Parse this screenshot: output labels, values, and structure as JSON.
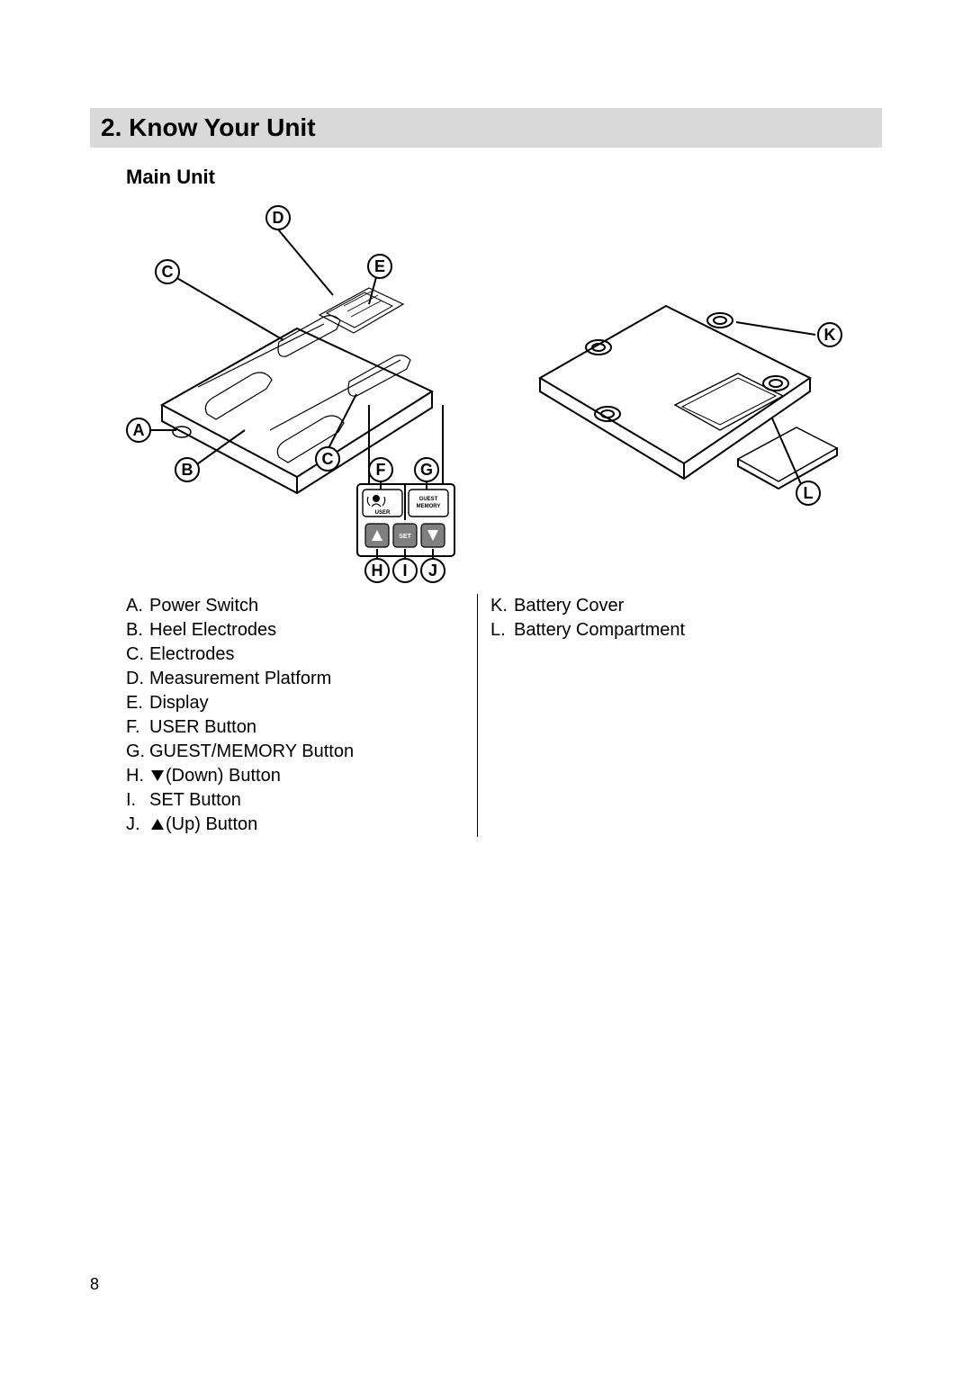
{
  "section": {
    "number": "2.",
    "title": "Know Your Unit"
  },
  "subsection": "Main Unit",
  "callouts": {
    "A": "A",
    "B": "B",
    "C": "C",
    "D": "D",
    "E": "E",
    "F": "F",
    "G": "G",
    "H": "H",
    "I": "I",
    "J": "J",
    "K": "K",
    "L": "L"
  },
  "legend_left": [
    {
      "letter": "A.",
      "text": "Power Switch"
    },
    {
      "letter": "B.",
      "text": "Heel Electrodes"
    },
    {
      "letter": "C.",
      "text": "Electrodes"
    },
    {
      "letter": "D.",
      "text": "Measurement Platform"
    },
    {
      "letter": "E.",
      "text": "Display"
    },
    {
      "letter": "F.",
      "text": "USER Button"
    },
    {
      "letter": "G.",
      "text": "GUEST/MEMORY Button"
    },
    {
      "letter": "H.",
      "icon": "down",
      "text": "(Down) Button"
    },
    {
      "letter": "I.",
      "text": "SET Button"
    },
    {
      "letter": "J.",
      "icon": "up",
      "text": "(Up) Button"
    }
  ],
  "legend_right": [
    {
      "letter": "K.",
      "text": "Battery Cover"
    },
    {
      "letter": "L.",
      "text": "Battery Compartment"
    }
  ],
  "buttons": {
    "user": "USER",
    "guest_memory_l1": "GUEST",
    "guest_memory_l2": "MEMORY",
    "set": "SET"
  },
  "page_number": "8",
  "colors": {
    "header_bg": "#d9d9d9",
    "text": "#000000",
    "bg": "#ffffff",
    "stroke": "#000000"
  }
}
